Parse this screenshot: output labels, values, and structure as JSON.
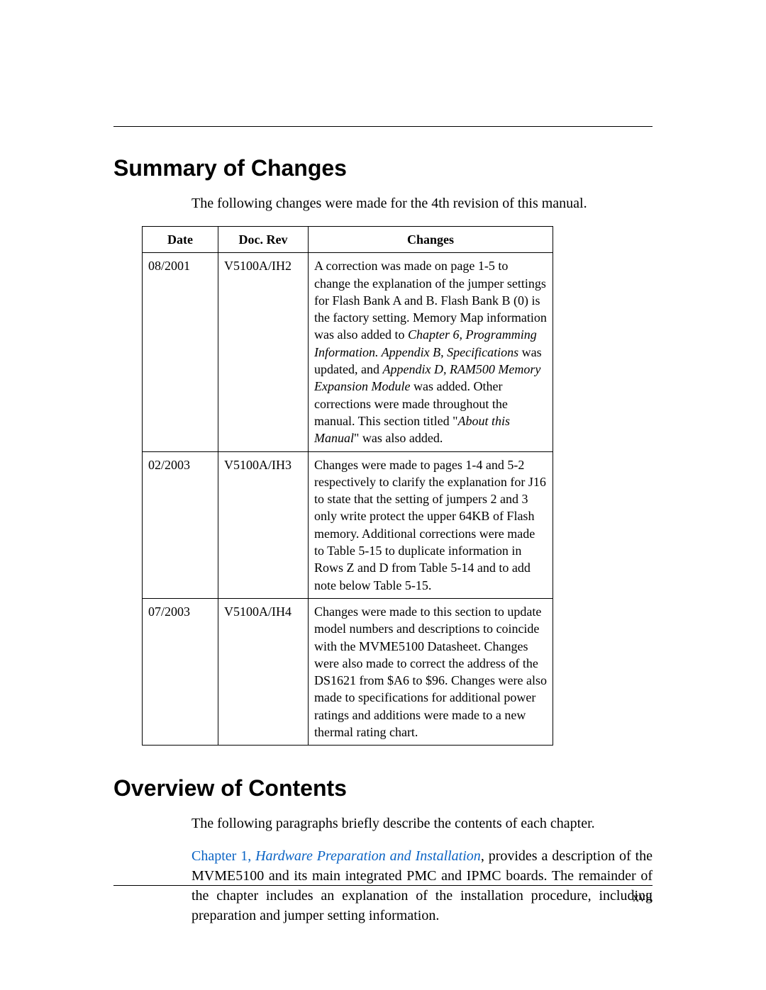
{
  "rule_present": true,
  "sections": {
    "summary": {
      "title": "Summary of Changes",
      "intro": "The following changes were made for the 4th revision of this manual.",
      "table": {
        "headers": {
          "date": "Date",
          "rev": "Doc. Rev",
          "changes": "Changes"
        },
        "rows": [
          {
            "date": "08/2001",
            "rev": "V5100A/IH2",
            "text_parts": {
              "p1": "A correction was made on page 1-5 to change the explanation of the jumper settings for Flash Bank A and B. Flash Bank B (0) is the factory setting. Memory Map information was also added to ",
              "i1": "Chapter 6, Programming Information.  Appendix B, Specifications",
              "p2": " was updated, and ",
              "i2": "Appendix D, RAM500 Memory Expansion Module",
              "p3": " was added. Other corrections were made throughout the manual. This section titled \"",
              "i3": "About this Manual",
              "p4": "\" was also added."
            }
          },
          {
            "date": "02/2003",
            "rev": "V5100A/IH3",
            "text": "Changes were made to pages 1-4 and 5-2 respectively to clarify the explanation for J16 to state that the setting of jumpers 2 and 3 only write protect the upper 64KB of Flash memory. Additional corrections were made to Table 5-15 to duplicate information in Rows Z and D from Table 5-14 and to add note below Table 5-15."
          },
          {
            "date": "07/2003",
            "rev": "V5100A/IH4",
            "text": "Changes were made to this section to update model numbers and descriptions to coincide with the MVME5100 Datasheet. Changes were also made to correct the address of the DS1621 from $A6 to $96. Changes were also made to specifications for additional power ratings and additions were made to a  new thermal rating chart."
          }
        ]
      }
    },
    "overview": {
      "title": "Overview of Contents",
      "intro": "The following paragraphs briefly describe the contents of each chapter.",
      "para1": {
        "link_lead": "Chapter 1, ",
        "link_text": "Hardware Preparation and Installation",
        "rest": ", provides a description of the MVME5100 and its main integrated PMC and IPMC boards. The remainder of the chapter includes an explanation of the installation procedure, including preparation and jumper setting information."
      }
    }
  },
  "page_number": "xvii",
  "colors": {
    "link": "#0a63c4",
    "text": "#000000",
    "background": "#ffffff"
  }
}
